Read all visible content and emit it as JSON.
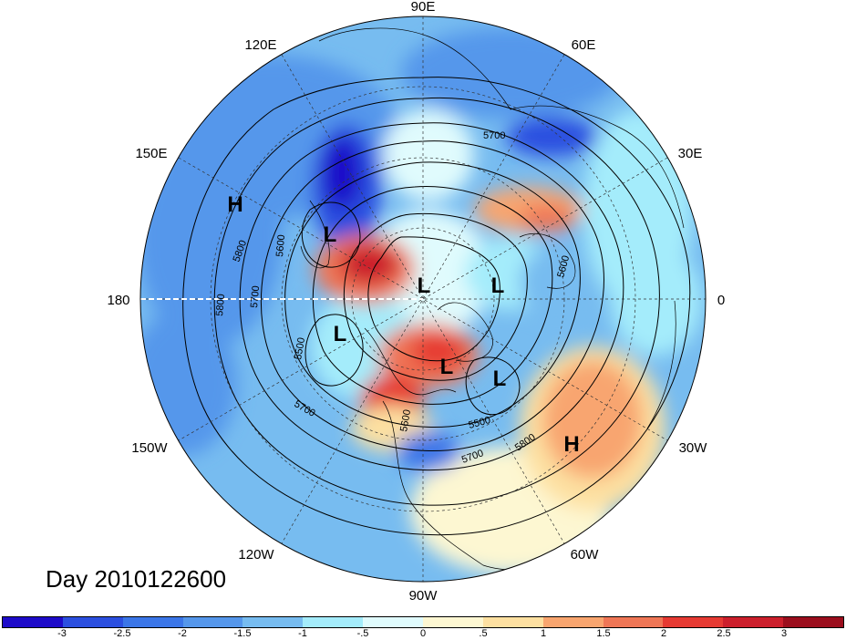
{
  "title": "Day 2010122600",
  "longitude_labels": {
    "top": "90E",
    "top_left": "120E",
    "top_right": "60E",
    "upper_left": "150E",
    "upper_right": "30E",
    "left": "180",
    "right": "0",
    "lower_left": "150W",
    "lower_right": "30W",
    "bottom_left": "120W",
    "bottom_right": "60W",
    "bottom": "90W"
  },
  "pressure_centers": [
    {
      "type": "H",
      "region": "north-pacific"
    },
    {
      "type": "L",
      "region": "east-siberia"
    },
    {
      "type": "L",
      "region": "arctic-pole"
    },
    {
      "type": "L",
      "region": "barents-sea"
    },
    {
      "type": "L",
      "region": "bering-alaska"
    },
    {
      "type": "L",
      "region": "hudson-bay"
    },
    {
      "type": "L",
      "region": "labrador-greenland"
    },
    {
      "type": "H",
      "region": "north-atlantic"
    }
  ],
  "contour_labels": [
    "5700",
    "5800",
    "5600",
    "5700",
    "5800",
    "5500",
    "5700",
    "5600",
    "5500",
    "5700",
    "5800",
    "5600"
  ],
  "colorbar": {
    "colors": [
      "#1d0bc9",
      "#2b4fe0",
      "#3b76e8",
      "#5597eb",
      "#77bcf0",
      "#a4ecfb",
      "#e0fbfd",
      "#fdf7d2",
      "#fde0a1",
      "#f8a56f",
      "#ef7656",
      "#e63a33",
      "#cc1f2c",
      "#9b0e1d"
    ],
    "tick_labels": [
      "-3",
      "-2.5",
      "-2",
      "-1.5",
      "-1",
      "-.5",
      "0",
      ".5",
      "1",
      "1.5",
      "2",
      "2.5",
      "3"
    ]
  }
}
